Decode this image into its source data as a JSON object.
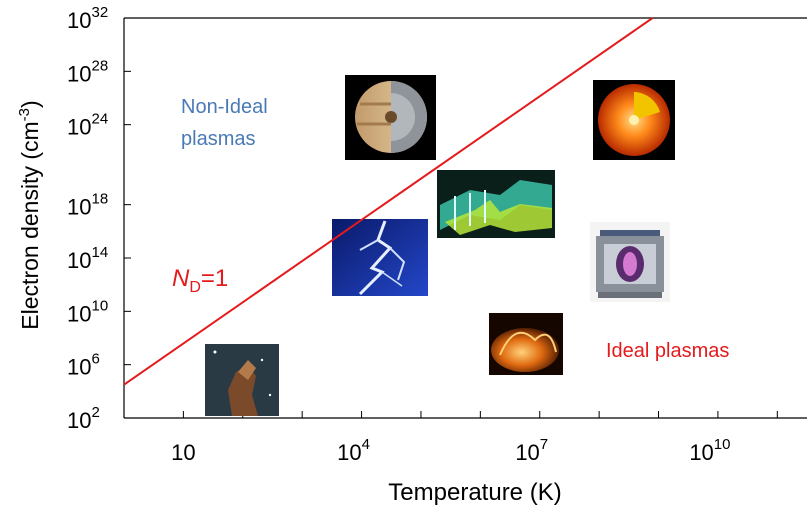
{
  "chart_data": {
    "type": "line",
    "xlabel": "Temperature (K)",
    "ylabel_main": "Electron density (cm",
    "ylabel_sup": "-3",
    "ylabel_tail": ")",
    "x_log_range": [
      0,
      11.5
    ],
    "y_log_range": [
      2,
      32
    ],
    "x_ticks": [
      {
        "base": "10",
        "exp": "",
        "log": 1
      },
      {
        "base": "10",
        "exp": "4",
        "log": 4
      },
      {
        "base": "10",
        "exp": "7",
        "log": 7
      },
      {
        "base": "10",
        "exp": "10",
        "log": 10
      }
    ],
    "y_ticks": [
      {
        "base": "10",
        "exp": "2",
        "log": 2
      },
      {
        "base": "10",
        "exp": "6",
        "log": 6
      },
      {
        "base": "10",
        "exp": "10",
        "log": 10
      },
      {
        "base": "10",
        "exp": "14",
        "log": 14
      },
      {
        "base": "10",
        "exp": "18",
        "log": 18
      },
      {
        "base": "10",
        "exp": "24",
        "log": 24
      },
      {
        "base": "10",
        "exp": "28",
        "log": 28
      },
      {
        "base": "10",
        "exp": "32",
        "log": 32
      }
    ],
    "series": [
      {
        "name": "N_D=1",
        "label_main": "N",
        "label_sub": "D",
        "label_tail": "=1",
        "x_log": [
          0,
          8.9
        ],
        "y_log": [
          4.5,
          32
        ],
        "color": "#e41a1c"
      }
    ],
    "region_labels": {
      "non_ideal_line1": "Non-Ideal",
      "non_ideal_line2": "plasmas",
      "ideal": "Ideal plasmas"
    },
    "colors": {
      "line": "#e41a1c",
      "non_ideal_text": "#4a7ab6",
      "ideal_text": "#e41a1c",
      "axis": "#000000"
    },
    "images": [
      {
        "name": "jupiter-cutaway"
      },
      {
        "name": "sun-cutaway"
      },
      {
        "name": "plasma-wave-surface"
      },
      {
        "name": "lightning"
      },
      {
        "name": "tokamak-reactor"
      },
      {
        "name": "solar-flare"
      },
      {
        "name": "nebula-pillar"
      }
    ]
  }
}
